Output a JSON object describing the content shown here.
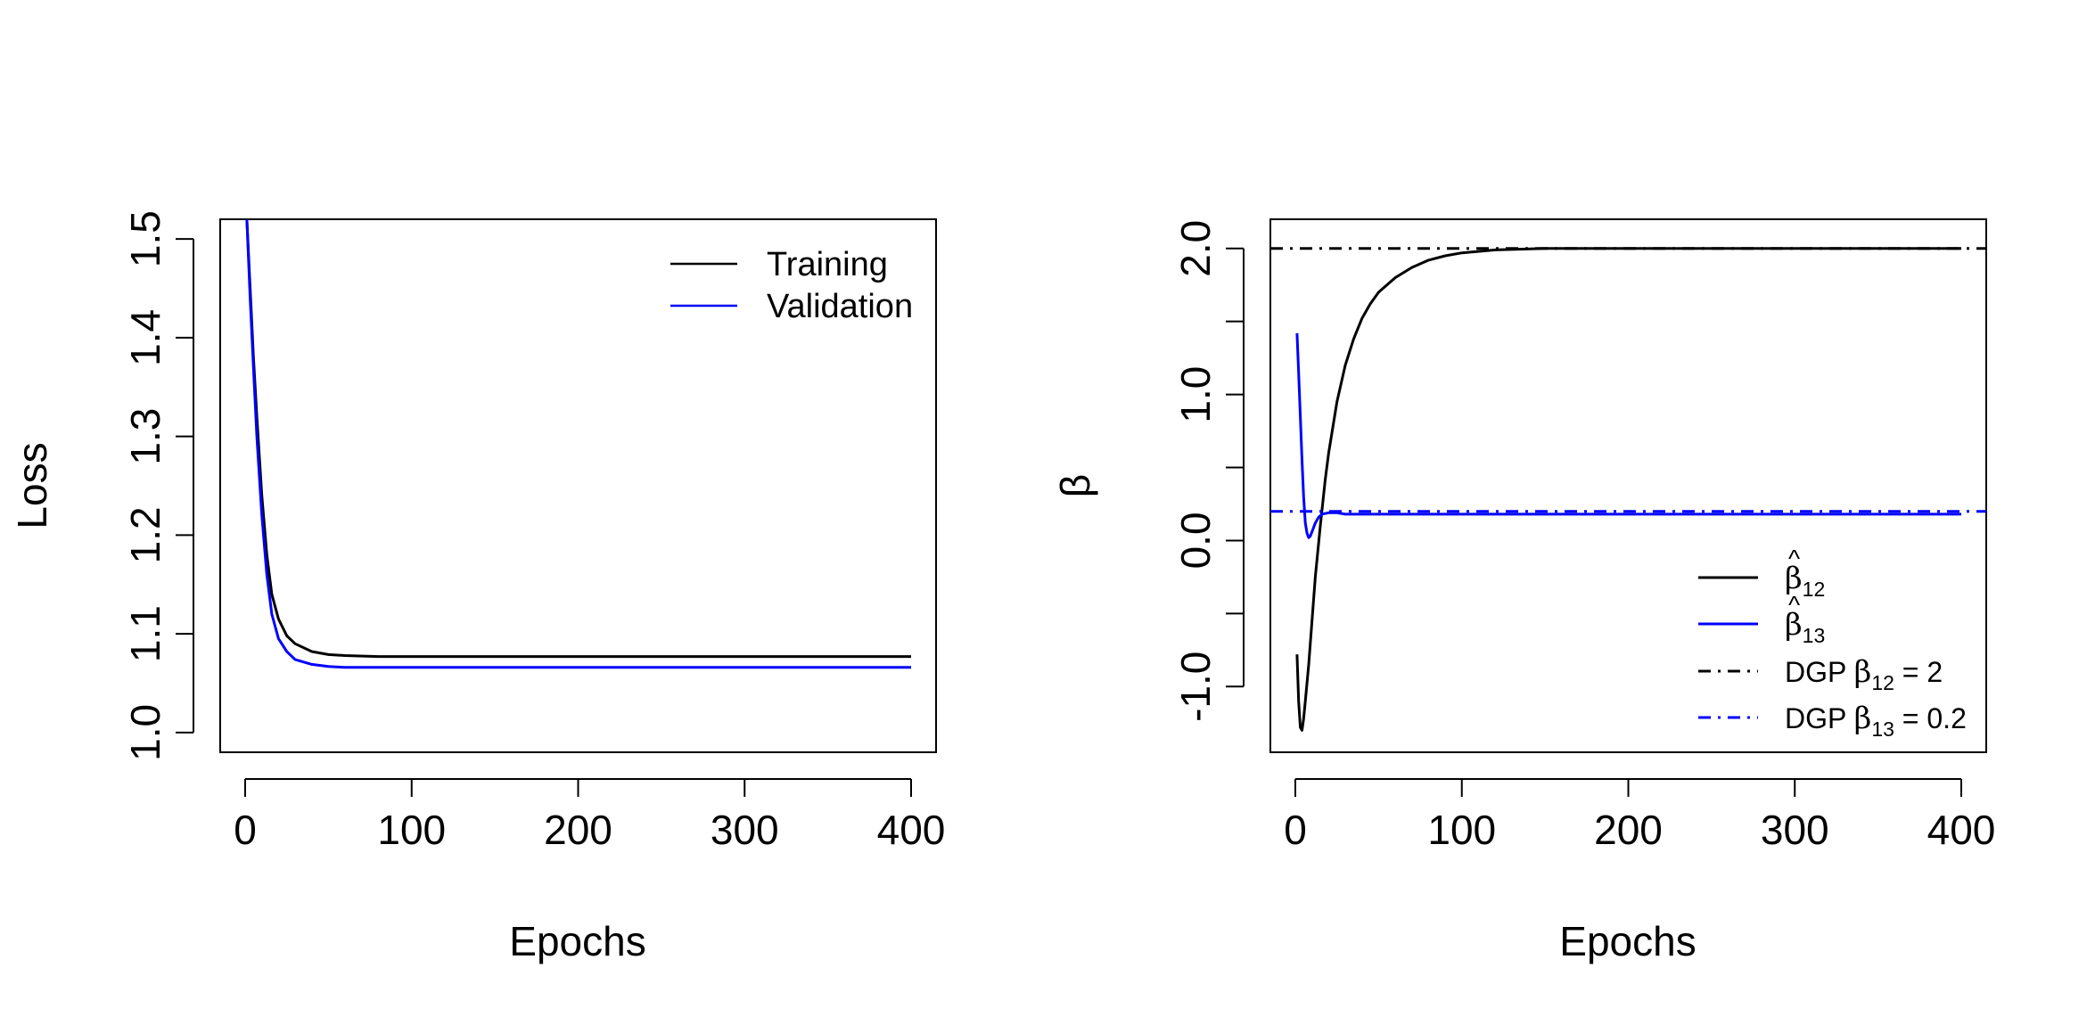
{
  "chart_data": [
    {
      "type": "line",
      "xlabel": "Epochs",
      "ylabel": "Loss",
      "xlim": [
        -15,
        415
      ],
      "ylim": [
        0.98,
        1.52
      ],
      "xticks": [
        0,
        100,
        200,
        300,
        400
      ],
      "xtick_labels": [
        "0",
        "100",
        "200",
        "300",
        "400"
      ],
      "yticks": [
        1.0,
        1.1,
        1.2,
        1.3,
        1.4,
        1.5
      ],
      "ytick_labels": [
        "1.0",
        "1.1",
        "1.2",
        "1.3",
        "1.4",
        "1.5"
      ],
      "grid": false,
      "legend_position": "top-right",
      "series": [
        {
          "name": "Training",
          "color": "#000000",
          "line_style": "solid",
          "x": [
            1,
            3,
            5,
            7,
            10,
            13,
            16,
            20,
            25,
            30,
            40,
            50,
            60,
            80,
            100,
            150,
            200,
            250,
            300,
            350,
            400
          ],
          "y": [
            1.52,
            1.45,
            1.38,
            1.32,
            1.24,
            1.18,
            1.14,
            1.115,
            1.098,
            1.09,
            1.082,
            1.079,
            1.078,
            1.077,
            1.077,
            1.077,
            1.077,
            1.077,
            1.077,
            1.077,
            1.077
          ]
        },
        {
          "name": "Validation",
          "color": "#0000ff",
          "line_style": "solid",
          "x": [
            1,
            3,
            5,
            7,
            10,
            13,
            16,
            20,
            25,
            30,
            40,
            50,
            60,
            80,
            100,
            150,
            200,
            250,
            300,
            350,
            400
          ],
          "y": [
            1.52,
            1.44,
            1.37,
            1.3,
            1.22,
            1.16,
            1.12,
            1.095,
            1.082,
            1.074,
            1.069,
            1.067,
            1.066,
            1.066,
            1.066,
            1.066,
            1.066,
            1.066,
            1.066,
            1.066,
            1.066
          ]
        }
      ]
    },
    {
      "type": "line",
      "xlabel": "Epochs",
      "ylabel": "β",
      "xlim": [
        -15,
        415
      ],
      "ylim": [
        -1.45,
        2.2
      ],
      "xticks": [
        0,
        100,
        200,
        300,
        400
      ],
      "xtick_labels": [
        "0",
        "100",
        "200",
        "300",
        "400"
      ],
      "yticks": [
        -1.0,
        -0.5,
        0.0,
        0.5,
        1.0,
        1.5,
        2.0
      ],
      "ytick_labels": [
        "-1.0",
        "",
        "0.0",
        "",
        "1.0",
        "",
        "2.0"
      ],
      "grid": false,
      "legend_position": "bottom-right",
      "series": [
        {
          "name": "β̂12",
          "color": "#000000",
          "line_style": "solid",
          "x": [
            1,
            2,
            3,
            4,
            5,
            6,
            8,
            10,
            12,
            15,
            18,
            20,
            25,
            30,
            35,
            40,
            45,
            50,
            60,
            70,
            80,
            90,
            100,
            120,
            150,
            200,
            250,
            300,
            350,
            400
          ],
          "y": [
            -0.78,
            -1.1,
            -1.28,
            -1.3,
            -1.22,
            -1.1,
            -0.85,
            -0.55,
            -0.25,
            0.1,
            0.42,
            0.6,
            0.95,
            1.2,
            1.38,
            1.52,
            1.62,
            1.7,
            1.8,
            1.87,
            1.92,
            1.95,
            1.97,
            1.99,
            2.0,
            2.0,
            2.0,
            2.0,
            2.0,
            2.0
          ]
        },
        {
          "name": "β̂13",
          "color": "#0000ff",
          "line_style": "solid",
          "x": [
            1,
            2,
            3,
            4,
            5,
            6,
            7,
            8,
            9,
            10,
            12,
            14,
            16,
            20,
            25,
            30,
            40,
            60,
            100,
            150,
            200,
            250,
            300,
            350,
            400
          ],
          "y": [
            1.42,
            1.15,
            0.85,
            0.55,
            0.3,
            0.12,
            0.05,
            0.02,
            0.03,
            0.06,
            0.12,
            0.16,
            0.18,
            0.19,
            0.19,
            0.18,
            0.18,
            0.18,
            0.18,
            0.18,
            0.18,
            0.18,
            0.18,
            0.18,
            0.18
          ]
        },
        {
          "name": "DGP β12 = 2",
          "color": "#000000",
          "line_style": "dashdot",
          "x": [
            -15,
            415
          ],
          "y": [
            2.0,
            2.0
          ]
        },
        {
          "name": "DGP β13 = 0.2",
          "color": "#0000ff",
          "line_style": "dashdot",
          "x": [
            -15,
            415
          ],
          "y": [
            0.2,
            0.2
          ]
        }
      ],
      "legend_entries": [
        {
          "symbol": "β",
          "hat": "^",
          "sub": "12",
          "rest": ""
        },
        {
          "symbol": "β",
          "hat": "^",
          "sub": "13",
          "rest": ""
        },
        {
          "prefix": "DGP ",
          "symbol": "β",
          "sub": "12",
          "rest": " = 2"
        },
        {
          "prefix": "DGP ",
          "symbol": "β",
          "sub": "13",
          "rest": " = 0.2"
        }
      ]
    }
  ]
}
